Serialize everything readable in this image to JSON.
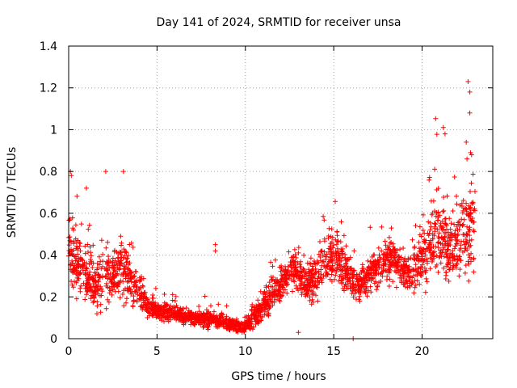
{
  "chart_data": {
    "type": "scatter",
    "title": "Day 141 of 2024, SRMTID for receiver unsa",
    "xlabel": "GPS time / hours",
    "ylabel": "SRMTID / TECUs",
    "xlim": [
      0,
      24
    ],
    "ylim": [
      0,
      1.4
    ],
    "x_ticks": [
      0,
      5,
      10,
      15,
      20
    ],
    "x_tick_labels": [
      "0",
      "5",
      "10",
      "15",
      "20"
    ],
    "y_ticks": [
      0,
      0.2,
      0.4,
      0.6,
      0.8,
      1.0,
      1.2,
      1.4
    ],
    "y_tick_labels": [
      "0",
      "0.2",
      "0.4",
      "0.6",
      "0.8",
      "1",
      "1.2",
      "1.4"
    ],
    "grid": true,
    "marker": "+",
    "color": "#ff0000",
    "series": [
      {
        "name": "SRMTID",
        "profile": {
          "hours": [
            0.0,
            0.5,
            1.0,
            1.5,
            2.0,
            2.5,
            3.0,
            3.5,
            4.0,
            4.5,
            5.0,
            6.0,
            7.0,
            8.0,
            9.0,
            9.5,
            10.0,
            10.5,
            11.0,
            11.5,
            12.0,
            12.5,
            13.0,
            13.5,
            14.0,
            14.5,
            15.0,
            15.5,
            16.0,
            16.5,
            17.0,
            17.5,
            18.0,
            18.5,
            19.0,
            19.5,
            20.0,
            20.5,
            21.0,
            21.5,
            22.0,
            22.5,
            23.0
          ],
          "center": [
            0.45,
            0.35,
            0.3,
            0.25,
            0.28,
            0.3,
            0.35,
            0.28,
            0.22,
            0.16,
            0.13,
            0.12,
            0.1,
            0.09,
            0.08,
            0.06,
            0.06,
            0.11,
            0.16,
            0.2,
            0.26,
            0.32,
            0.3,
            0.26,
            0.3,
            0.38,
            0.4,
            0.35,
            0.28,
            0.26,
            0.3,
            0.33,
            0.38,
            0.36,
            0.32,
            0.33,
            0.4,
            0.48,
            0.5,
            0.42,
            0.45,
            0.5,
            0.55
          ],
          "spread": [
            0.25,
            0.18,
            0.22,
            0.15,
            0.25,
            0.15,
            0.3,
            0.15,
            0.12,
            0.08,
            0.06,
            0.05,
            0.05,
            0.05,
            0.05,
            0.04,
            0.04,
            0.08,
            0.1,
            0.12,
            0.12,
            0.12,
            0.12,
            0.12,
            0.15,
            0.18,
            0.18,
            0.15,
            0.12,
            0.12,
            0.12,
            0.12,
            0.15,
            0.15,
            0.12,
            0.15,
            0.2,
            0.28,
            0.35,
            0.2,
            0.25,
            0.3,
            0.35
          ]
        },
        "notable_points": [
          {
            "x": 0.1,
            "y": 0.8
          },
          {
            "x": 0.15,
            "y": 0.78
          },
          {
            "x": 1.0,
            "y": 0.72
          },
          {
            "x": 2.1,
            "y": 0.8
          },
          {
            "x": 3.1,
            "y": 0.8
          },
          {
            "x": 8.3,
            "y": 0.45
          },
          {
            "x": 8.3,
            "y": 0.42
          },
          {
            "x": 13.0,
            "y": 0.03
          },
          {
            "x": 16.1,
            "y": 0.0
          },
          {
            "x": 21.2,
            "y": 1.01
          },
          {
            "x": 21.3,
            "y": 0.98
          },
          {
            "x": 22.6,
            "y": 1.23
          },
          {
            "x": 22.7,
            "y": 1.18
          },
          {
            "x": 22.7,
            "y": 1.08
          },
          {
            "x": 22.5,
            "y": 0.94
          },
          {
            "x": 22.8,
            "y": 0.88
          }
        ]
      }
    ]
  }
}
